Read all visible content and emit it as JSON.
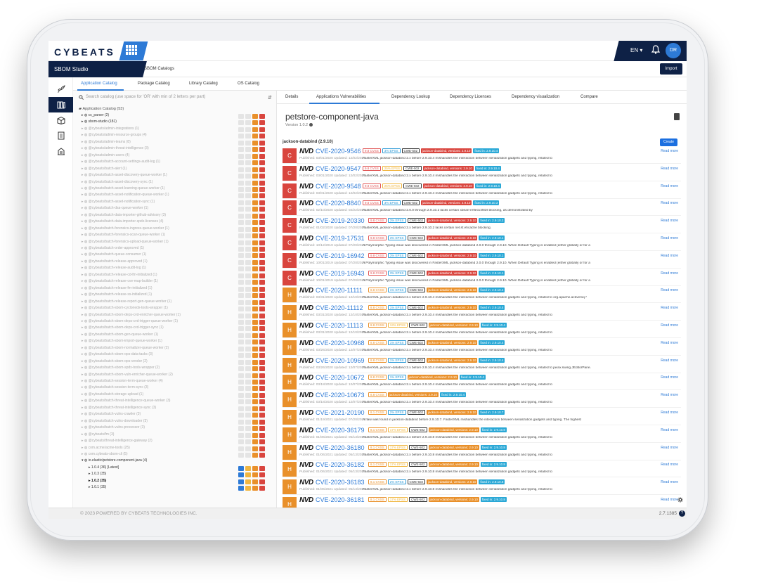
{
  "header": {
    "logo": "CYBEATS",
    "language": "EN",
    "avatar_initials": "DR"
  },
  "studio": {
    "title": "SBOM Studio",
    "section": "SBOM Catalogs",
    "import_label": "Import"
  },
  "catalog_tabs": [
    "Application Catalog",
    "Package Catalog",
    "Library Catalog",
    "OS Catalog"
  ],
  "catalog": {
    "search_placeholder": "Search catalog (use space for 'OR' with min of 2 letters per part)",
    "root_label": "Application Catalog (53)",
    "items": [
      "cs_parser (2)",
      "sbom-studio (181)",
      "@cybeats/admin-integrations (1)",
      "@cybeats/admin-resource-groups (4)",
      "@cybeats/admin-teams (8)",
      "@cybeats/admin-threat-intelligence (3)",
      "@cybeats/admin-users (4)",
      "@cybeats/batch-account-settings-audit-log (1)",
      "@cybeats/batch-alert (1)",
      "@cybeats/batch-asset-discovery-queue-worker (1)",
      "@cybeats/batch-asset-discovery-sync (1)",
      "@cybeats/batch-asset-learning-queue-worker (1)",
      "@cybeats/batch-asset-notification-queue-worker (1)",
      "@cybeats/batch-asset-notification-sync (1)",
      "@cybeats/batch-dsa-queue-worker (1)",
      "@cybeats/batch-data-importer-github-advisory (3)",
      "@cybeats/batch-data-importer-spdx-licenses (4)",
      "@cybeats/batch-forensics-ingress-queue-worker (1)",
      "@cybeats/batch-forensics-scan-queue-worker (1)",
      "@cybeats/batch-forensics-upload-queue-worker (1)",
      "@cybeats/batch-order-approved (1)",
      "@cybeats/batch-queue-consumer (1)",
      "@cybeats/batch-release-approved (1)",
      "@cybeats/batch-release-audit-log (1)",
      "@cybeats/batch-release-cd-fm-initialized (1)",
      "@cybeats/batch-release-cve-map-builder (1)",
      "@cybeats/batch-release-fm-initialized (1)",
      "@cybeats/batch-release-ss-initialized (1)",
      "@cybeats/batch-release-report-gen-queue-worker (1)",
      "@cybeats/batch-sbom-cyclonedx-tools-wrapper (1)",
      "@cybeats/batch-sbom-deps-cvd-enricher-queue-worker (1)",
      "@cybeats/batch-sbom-deps-cvd-trigger-queue-worker (1)",
      "@cybeats/batch-sbom-deps-cvd-trigger-sync (1)",
      "@cybeats/batch-sbom-gen-queue-worker (1)",
      "@cybeats/batch-sbom-import-queue-worker (1)",
      "@cybeats/batch-sbom-normalizer-queue-worker (2)",
      "@cybeats/batch-sbom-ops-data-tasks (3)",
      "@cybeats/batch-sbom-ops-vendor (2)",
      "@cybeats/batch-sbom-spdx-tools-wrapper (2)",
      "@cybeats/batch-sbom-vuln-enricher-queue-worker (2)",
      "@cybeats/batch-session-term-queue-worker (4)",
      "@cybeats/batch-session-term-sync (3)",
      "@cybeats/batch-storage-upload (1)",
      "@cybeats/batch-threat-intelligence-queue-worker (3)",
      "@cybeats/batch-threat-intelligence-sync (3)",
      "@cybeats/batch-vulns-crawler (3)",
      "@cybeats/batch-vulns-downloader (3)",
      "@cybeats/batch-vulns-processor (3)",
      "@cybeats/fm (3)",
      "@cybeats/threat-intelligence-gateway (2)",
      "com.acme/acme-tools (25)",
      "com.cybeats-sbom-cli (5)"
    ],
    "expanded_item": "io.elastic/petstore-component-java (4)",
    "versions": [
      "1.0.4 (36) [Latest]",
      "1.0.3 (35)",
      "1.0.2 (35)",
      "1.0.1 (35)"
    ]
  },
  "content_tabs": [
    "Details",
    "Applications Vulnerabilities",
    "Dependency Lookup",
    "Dependency Licenses",
    "Dependency visualization",
    "Compare"
  ],
  "component": {
    "title": "petstore-component-java",
    "version": "Version 1.0.2",
    "group": "jackson-databind (2.9.10)",
    "create_label": "Create"
  },
  "vulns": [
    {
      "sev": "C",
      "cve": "CVE-2020-9546",
      "cvss": "9.8 CVSS",
      "epss": "3% EPSS",
      "epss_hi": false,
      "cwe": "CWE-502",
      "pkg": "jackson-databind, versions: 2.9.10",
      "fix": "fixed in: 2.9.10.4",
      "meta": "Published: 03/01/2020 Updated: 12/02/2021",
      "desc": "FasterXML jackson-databind 2.x before 2.9.10.4 mishandles the interaction between serialization gadgets and typing, related to"
    },
    {
      "sev": "C",
      "cve": "CVE-2020-9547",
      "cvss": "9.8 CVSS",
      "epss": "25% EPSS",
      "epss_hi": true,
      "cwe": "CWE-502",
      "pkg": "jackson-databind, versions: 2.9.10",
      "fix": "fixed in: 2.9.10.4",
      "meta": "Published: 03/01/2020 Updated: 12/02/2021",
      "desc": "FasterXML jackson-databind 2.x before 2.9.10.4 mishandles the interaction between serialization gadgets and typing, related to"
    },
    {
      "sev": "C",
      "cve": "CVE-2020-9548",
      "cvss": "9.8 CVSS",
      "epss": "25% EPSS",
      "epss_hi": true,
      "cwe": "CWE-502",
      "pkg": "jackson-databind, versions: 2.9.10",
      "fix": "fixed in: 2.9.10.4",
      "meta": "Published: 03/01/2020 Updated: 12/02/2021",
      "desc": "FasterXML jackson-databind 2.x before 2.9.10.4 mishandles the interaction between serialization gadgets and typing, related to"
    },
    {
      "sev": "C",
      "cve": "CVE-2020-8840",
      "cvss": "9.8 CVSS",
      "epss": "3% EPSS",
      "epss_hi": false,
      "cwe": "CWE-502",
      "pkg": "jackson-databind, versions: 2.9.10",
      "fix": "fixed in: 2.9.10.3",
      "meta": "Published: 02/10/2020 Updated: 02/22/2021",
      "desc": "FasterXML jackson-databind 2.0.0 through 2.9.10.2 lacks certain xbean-reflect/JNDI blocking, as demonstrated by"
    },
    {
      "sev": "C",
      "cve": "CVE-2019-20330",
      "cvss": "9.8 CVSS",
      "epss": "3% EPSS",
      "epss_hi": false,
      "cwe": "CWE-502",
      "pkg": "jackson-databind, versions: 2.9.10",
      "fix": "fixed in: 2.9.10.2",
      "meta": "Published: 01/02/2020 Updated: 07/20/2021",
      "desc": "FasterXML jackson-databind 2.x before 2.9.10.2 lacks certain net.sf.ehcache blocking."
    },
    {
      "sev": "C",
      "cve": "CVE-2019-17531",
      "cvss": "9.8 CVSS",
      "epss": "3% EPSS",
      "epss_hi": false,
      "cwe": "CWE-502",
      "pkg": "jackson-databind, versions: 2.9.10",
      "fix": "fixed in: 2.9.10.1",
      "meta": "Published: 10/12/2019 Updated: 07/20/2021",
      "desc": "A Polymorphic Typing issue was discovered in FasterXML jackson-databind 2.0.0 through 2.9.10. When Default Typing is enabled (either globally or for a"
    },
    {
      "sev": "C",
      "cve": "CVE-2019-16942",
      "cvss": "9.8 CVSS",
      "epss": "3% EPSS",
      "epss_hi": false,
      "cwe": "CWE-502",
      "pkg": "jackson-databind, versions: 2.9.10",
      "fix": "fixed in: 2.9.10.1",
      "meta": "Published: 10/01/2019 Updated: 07/20/2021",
      "desc": "A Polymorphic Typing issue was discovered in FasterXML jackson-databind 2.0.0 through 2.9.10. When Default Typing is enabled (either globally or for a"
    },
    {
      "sev": "C",
      "cve": "CVE-2019-16943",
      "cvss": "9.8 CVSS",
      "epss": "3% EPSS",
      "epss_hi": false,
      "cwe": "CWE-502",
      "pkg": "jackson-databind, versions: 2.9.10",
      "fix": "fixed in: 2.9.10.1",
      "meta": "Published: 10/01/2019 Updated: 07/20/2021",
      "desc": "A Polymorphic Typing issue was discovered in FasterXML jackson-databind 2.0.0 through 2.9.10. When Default Typing is enabled (either globally or for a"
    },
    {
      "sev": "H",
      "cve": "CVE-2020-11111",
      "cvss": "8.8 CVSS",
      "epss": "1% EPSS",
      "epss_hi": false,
      "cwe": "CWE-502",
      "pkg": "jackson-databind, versions: 2.9.10",
      "fix": "fixed in: 2.9.10.4",
      "meta": "Published: 03/31/2020 Updated: 12/10/2021",
      "desc": "FasterXML jackson-databind 2.x before 2.9.10.4 mishandles the interaction between serialization gadgets and typing, related to org.apache.activemq.*"
    },
    {
      "sev": "H",
      "cve": "CVE-2020-11112",
      "cvss": "8.8 CVSS",
      "epss": "1% EPSS",
      "epss_hi": false,
      "cwe": "CWE-502",
      "pkg": "jackson-databind, versions: 2.9.10",
      "fix": "fixed in: 2.9.10.4",
      "meta": "Published: 03/31/2020 Updated: 12/10/2021",
      "desc": "FasterXML jackson-databind 2.x before 2.9.10.4 mishandles the interaction between serialization gadgets and typing, related to"
    },
    {
      "sev": "H",
      "cve": "CVE-2020-11113",
      "cvss": "8.8 CVSS",
      "epss": "13% EPSS",
      "epss_hi": true,
      "cwe": "CWE-502",
      "pkg": "jackson-databind, versions: 2.9.10",
      "fix": "fixed in: 2.9.10.4",
      "meta": "Published: 03/31/2020 Updated: 12/10/2021",
      "desc": "FasterXML jackson-databind 2.x before 2.9.10.4 mishandles the interaction between serialization gadgets and typing, related to"
    },
    {
      "sev": "H",
      "cve": "CVE-2020-10968",
      "cvss": "8.8 CVSS",
      "epss": "1% EPSS",
      "epss_hi": false,
      "cwe": "CWE-502",
      "pkg": "jackson-databind, versions: 2.9.10",
      "fix": "fixed in: 2.9.10.4",
      "meta": "Published: 03/26/2020 Updated: 12/07/2021",
      "desc": "FasterXML jackson-databind 2.x before 2.9.10.4 mishandles the interaction between serialization gadgets and typing, related to"
    },
    {
      "sev": "H",
      "cve": "CVE-2020-10969",
      "cvss": "8.8 CVSS",
      "epss": "1% EPSS",
      "epss_hi": false,
      "cwe": "CWE-502",
      "pkg": "jackson-databind, versions: 2.9.10",
      "fix": "fixed in: 2.9.10.4",
      "meta": "Published: 03/26/2020 Updated: 12/07/2021",
      "desc": "FasterXML jackson-databind 2.x before 2.9.10.4 mishandles the interaction between serialization gadgets and typing, related to javax.swing.JEditorPane."
    },
    {
      "sev": "H",
      "cve": "CVE-2020-10672",
      "cvss": "8.8 CVSS",
      "epss": "1% EPSS",
      "epss_hi": false,
      "cwe": "",
      "pkg": "jackson-databind, versions: 2.9.10",
      "fix": "fixed in: 2.9.10.4",
      "meta": "Published: 03/18/2020 Updated: 12/07/2021",
      "desc": "FasterXML jackson-databind 2.x before 2.9.10.4 mishandles the interaction between serialization gadgets and typing, related to"
    },
    {
      "sev": "H",
      "cve": "CVE-2020-10673",
      "cvss": "8.8 CVSS",
      "epss": "",
      "epss_hi": false,
      "cwe": "",
      "pkg": "jackson-databind, versions: 2.9.10",
      "fix": "fixed in: 2.9.10.4",
      "meta": "Published: 03/18/2020 Updated: 12/07/2021",
      "desc": "FasterXML jackson-databind 2.x before 2.9.10.4 mishandles the interaction between serialization gadgets and typing, related to"
    },
    {
      "sev": "H",
      "cve": "CVE-2021-20190",
      "cvss": "8.1 CVSS",
      "epss": "2% EPSS",
      "epss_hi": false,
      "cwe": "CWE-502",
      "pkg": "jackson-databind, versions: 2.9.10",
      "fix": "fixed in: 2.9.10.7",
      "meta": "Published: 01/19/2021 Updated: 07/20/2021",
      "desc": "A flaw was found in jackson-databind before 2.9.10.7. FasterXML mishandles the interaction between serialization gadgets and typing. The highest"
    },
    {
      "sev": "H",
      "cve": "CVE-2020-36179",
      "cvss": "8.1 CVSS",
      "epss": "17% EPSS",
      "epss_hi": true,
      "cwe": "CWE-502",
      "pkg": "jackson-databind, versions: 2.9.10",
      "fix": "fixed in: 2.9.10.8",
      "meta": "Published: 01/06/2021 Updated: 05/13/2022",
      "desc": "FasterXML jackson-databind 2.x before 2.9.10.8 mishandles the interaction between serialization gadgets and typing, related to"
    },
    {
      "sev": "H",
      "cve": "CVE-2020-36180",
      "cvss": "8.1 CVSS",
      "epss": "17% EPSS",
      "epss_hi": true,
      "cwe": "CWE-502",
      "pkg": "jackson-databind, versions: 2.9.10",
      "fix": "fixed in: 2.9.10.8",
      "meta": "Published: 01/06/2021 Updated: 05/13/2022",
      "desc": "FasterXML jackson-databind 2.x before 2.9.10.8 mishandles the interaction between serialization gadgets and typing, related to"
    },
    {
      "sev": "H",
      "cve": "CVE-2020-36182",
      "cvss": "8.1 CVSS",
      "epss": "17% EPSS",
      "epss_hi": true,
      "cwe": "CWE-502",
      "pkg": "jackson-databind, versions: 2.9.10",
      "fix": "fixed in: 2.9.10.8",
      "meta": "Published: 01/06/2021 Updated: 05/13/2022",
      "desc": "FasterXML jackson-databind 2.x before 2.9.10.8 mishandles the interaction between serialization gadgets and typing, related to"
    },
    {
      "sev": "H",
      "cve": "CVE-2020-36183",
      "cvss": "8.1 CVSS",
      "epss": "2% EPSS",
      "epss_hi": false,
      "cwe": "CWE-502",
      "pkg": "jackson-databind, versions: 2.9.10",
      "fix": "fixed in: 2.9.10.8",
      "meta": "Published: 01/06/2021 Updated: 05/13/2022",
      "desc": "FasterXML jackson-databind 2.x before 2.9.10.8 mishandles the interaction between serialization gadgets and typing, related to"
    },
    {
      "sev": "H",
      "cve": "CVE-2020-36181",
      "cvss": "8.1 CVSS",
      "epss": "17% EPSS",
      "epss_hi": true,
      "cwe": "CWE-502",
      "pkg": "jackson-databind, versions: 2.9.10",
      "fix": "fixed in: 2.9.10.8",
      "meta": "",
      "desc": ""
    }
  ],
  "read_more_label": "Read more",
  "footer": {
    "copyright": "© 2023 POWERED BY CYBEATS TECHNOLOGIES INC.",
    "version": "2.7.1385"
  },
  "colors": {
    "navy": "#0e2146",
    "accent": "#2d7ad6",
    "critical": "#d9453e",
    "high": "#e9902a",
    "fixed": "#2aa8d6"
  }
}
